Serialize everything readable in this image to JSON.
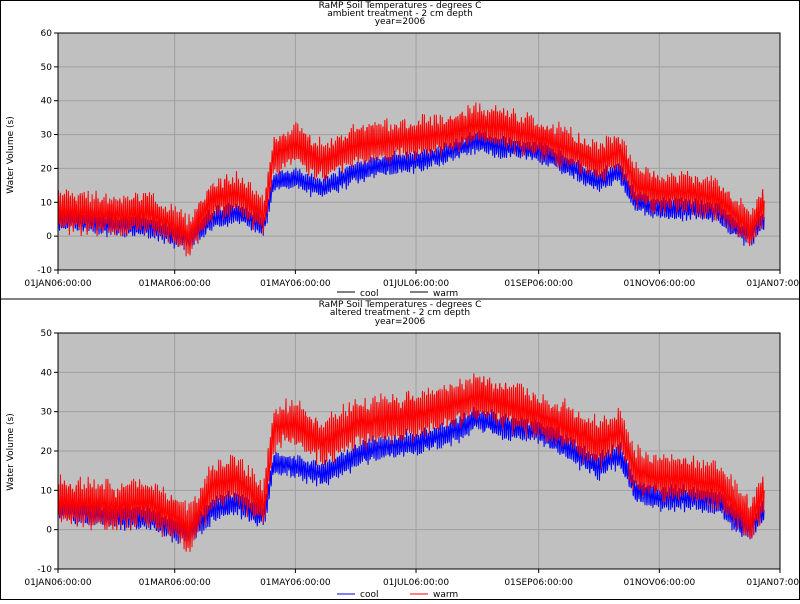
{
  "colors": {
    "plot_background": "#c0c0c0",
    "grid": "#a0a0a0",
    "cool": "#0000ff",
    "warm": "#ff0000",
    "frame": "#000000"
  },
  "chart_data": [
    {
      "type": "line",
      "title": "RaMP Soil Temperatures - degrees C",
      "subtitle": "ambient treatment - 2 cm depth",
      "by_line": "year=2006",
      "xlabel": "",
      "ylabel": "Water Volume (s)",
      "ylim": [
        -10,
        60
      ],
      "yticks": [
        -10,
        0,
        10,
        20,
        30,
        40,
        50,
        60
      ],
      "xticks": [
        "01JAN06:00:00",
        "01MAR06:00:00",
        "01MAY06:00:00",
        "01JUL06:00:00",
        "01SEP06:00:00",
        "01NOV06:00:00",
        "01JAN07:00:00"
      ],
      "grid": true,
      "legend_position": "top-center",
      "series": [
        {
          "name": "cool",
          "color": "#0000ff",
          "x": [
            "01JAN06",
            "15JAN06",
            "01FEB06",
            "15FEB06",
            "01MAR06",
            "08MAR06",
            "20MAR06",
            "01APR06",
            "15APR06",
            "20APR06",
            "01MAY06",
            "15MAY06",
            "01JUN06",
            "15JUN06",
            "01JUL06",
            "15JUL06",
            "01AUG06",
            "15AUG06",
            "01SEP06",
            "15SEP06",
            "01OCT06",
            "12OCT06",
            "20OCT06",
            "01NOV06",
            "15NOV06",
            "01DEC06",
            "10DEC06",
            "17DEC06",
            "24DEC06"
          ],
          "values": [
            5,
            4,
            3,
            3,
            0,
            -1,
            5,
            7,
            3,
            16,
            17,
            14,
            19,
            21,
            22,
            24,
            28,
            26,
            25,
            21,
            16,
            19,
            10,
            8,
            8,
            7,
            2,
            0,
            5
          ]
        },
        {
          "name": "warm",
          "color": "#ff0000",
          "x": [
            "01JAN06",
            "15JAN06",
            "01FEB06",
            "15FEB06",
            "01MAR06",
            "08MAR06",
            "20MAR06",
            "01APR06",
            "15APR06",
            "20APR06",
            "01MAY06",
            "15MAY06",
            "01JUN06",
            "15JUN06",
            "01JUL06",
            "15JUL06",
            "01AUG06",
            "15AUG06",
            "01SEP06",
            "15SEP06",
            "01OCT06",
            "12OCT06",
            "20OCT06",
            "01NOV06",
            "15NOV06",
            "01DEC06",
            "10DEC06",
            "17DEC06",
            "24DEC06"
          ],
          "values": [
            7,
            7,
            6,
            7,
            3,
            0,
            11,
            13,
            6,
            24,
            27,
            22,
            27,
            28,
            29,
            30,
            33,
            32,
            29,
            26,
            22,
            25,
            15,
            13,
            13,
            11,
            6,
            2,
            10
          ]
        }
      ]
    },
    {
      "type": "line",
      "title": "RaMP Soil Temperatures - degrees C",
      "subtitle": "altered treatment - 2 cm depth",
      "by_line": "year=2006",
      "xlabel": "",
      "ylabel": "Water Volume (s)",
      "ylim": [
        -10,
        50
      ],
      "yticks": [
        -10,
        0,
        10,
        20,
        30,
        40,
        50
      ],
      "xticks": [
        "01JAN06:00:00",
        "01MAR06:00:00",
        "01MAY06:00:00",
        "01JUL06:00:00",
        "01SEP06:00:00",
        "01NOV06:00:00",
        "01JAN07:00:00"
      ],
      "grid": true,
      "legend_position": "bottom-center",
      "series": [
        {
          "name": "cool",
          "color": "#0000ff",
          "x": [
            "01JAN06",
            "15JAN06",
            "01FEB06",
            "15FEB06",
            "01MAR06",
            "08MAR06",
            "20MAR06",
            "01APR06",
            "15APR06",
            "20APR06",
            "01MAY06",
            "15MAY06",
            "01JUN06",
            "15JUN06",
            "01JUL06",
            "15JUL06",
            "01AUG06",
            "15AUG06",
            "01SEP06",
            "15SEP06",
            "01OCT06",
            "12OCT06",
            "20OCT06",
            "01NOV06",
            "15NOV06",
            "01DEC06",
            "10DEC06",
            "17DEC06",
            "24DEC06"
          ],
          "values": [
            5,
            4,
            3,
            3,
            0,
            -1,
            5,
            7,
            3,
            17,
            16,
            14,
            19,
            21,
            22,
            24,
            28,
            26,
            25,
            21,
            16,
            19,
            10,
            8,
            8,
            7,
            2,
            0,
            5
          ]
        },
        {
          "name": "warm",
          "color": "#ff0000",
          "x": [
            "01JAN06",
            "15JAN06",
            "01FEB06",
            "15FEB06",
            "01MAR06",
            "08MAR06",
            "20MAR06",
            "01APR06",
            "15APR06",
            "20APR06",
            "01MAY06",
            "15MAY06",
            "01JUN06",
            "15JUN06",
            "01JUL06",
            "15JUL06",
            "01AUG06",
            "15AUG06",
            "01SEP06",
            "15SEP06",
            "01OCT06",
            "12OCT06",
            "20OCT06",
            "01NOV06",
            "15NOV06",
            "01DEC06",
            "10DEC06",
            "17DEC06",
            "24DEC06"
          ],
          "values": [
            7,
            7,
            6,
            7,
            3,
            0,
            11,
            13,
            6,
            26,
            27,
            22,
            27,
            28,
            29,
            31,
            34,
            32,
            29,
            26,
            22,
            25,
            15,
            13,
            13,
            11,
            6,
            2,
            10
          ]
        }
      ]
    }
  ]
}
